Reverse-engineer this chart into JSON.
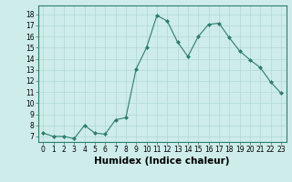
{
  "x": [
    0,
    1,
    2,
    3,
    4,
    5,
    6,
    7,
    8,
    9,
    10,
    11,
    12,
    13,
    14,
    15,
    16,
    17,
    18,
    19,
    20,
    21,
    22,
    23
  ],
  "y": [
    7.3,
    7.0,
    7.0,
    6.8,
    8.0,
    7.3,
    7.2,
    8.5,
    8.7,
    13.1,
    15.0,
    17.9,
    17.4,
    15.5,
    14.2,
    16.0,
    17.1,
    17.2,
    15.9,
    14.7,
    13.9,
    13.2,
    11.9,
    10.9
  ],
  "line_color": "#2d7d6e",
  "marker": "D",
  "marker_size": 2,
  "bg_color": "#ceecea",
  "grid_color": "#b0d8d4",
  "xlabel": "Humidex (Indice chaleur)",
  "ylim": [
    6.5,
    18.8
  ],
  "xlim": [
    -0.5,
    23.5
  ],
  "yticks": [
    7,
    8,
    9,
    10,
    11,
    12,
    13,
    14,
    15,
    16,
    17,
    18
  ],
  "xticks": [
    0,
    1,
    2,
    3,
    4,
    5,
    6,
    7,
    8,
    9,
    10,
    11,
    12,
    13,
    14,
    15,
    16,
    17,
    18,
    19,
    20,
    21,
    22,
    23
  ],
  "tick_fontsize": 5.5,
  "xlabel_fontsize": 7.5,
  "xlabel_fontweight": "bold"
}
